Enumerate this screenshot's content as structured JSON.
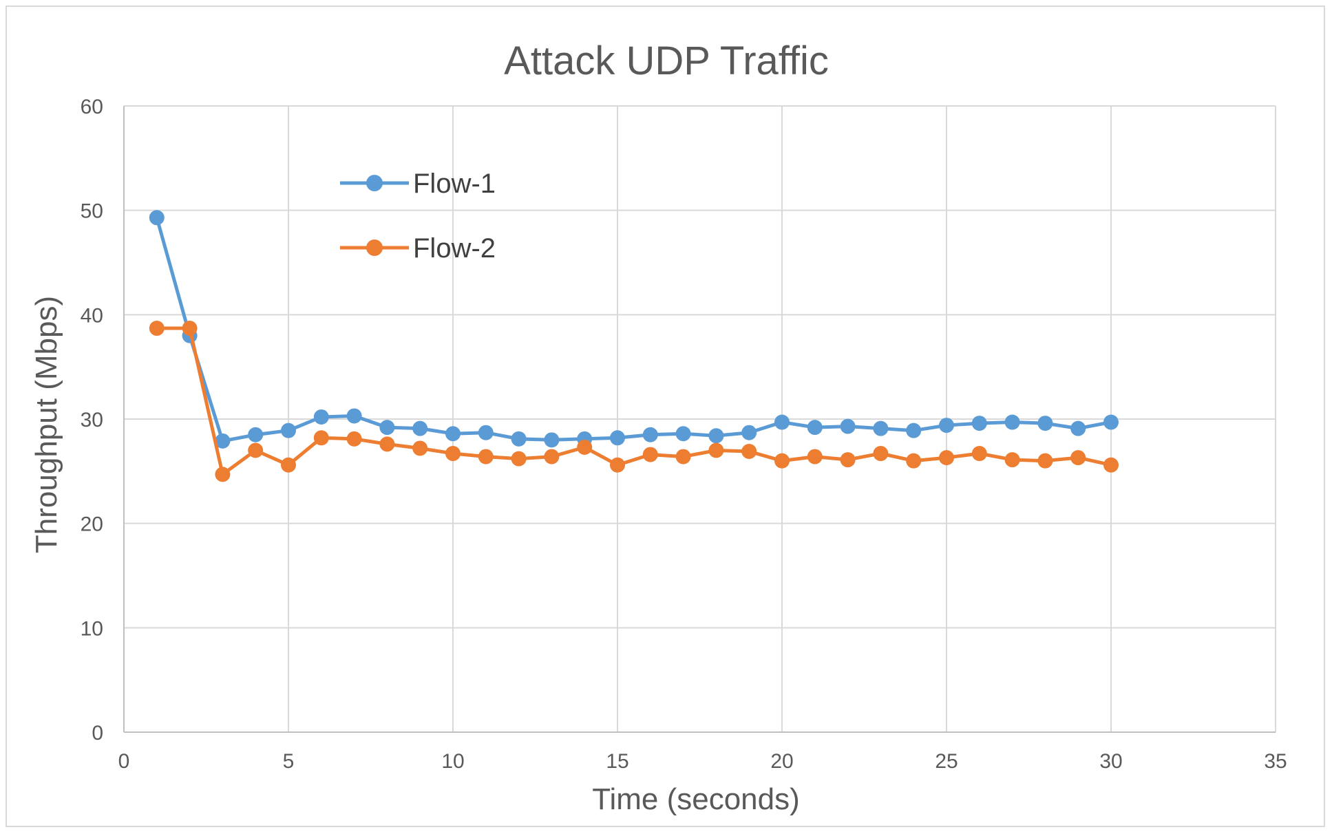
{
  "chart_data": {
    "type": "line",
    "title": "Attack UDP Traffic",
    "xlabel": "Time (seconds)",
    "ylabel": "Throughput (Mbps)",
    "xlim": [
      0,
      35
    ],
    "ylim": [
      0,
      60
    ],
    "x_ticks": [
      0,
      5,
      10,
      15,
      20,
      25,
      30,
      35
    ],
    "y_ticks": [
      0,
      10,
      20,
      30,
      40,
      50,
      60
    ],
    "grid": true,
    "legend_position": "upper-left-inside",
    "x": [
      1,
      2,
      3,
      4,
      5,
      6,
      7,
      8,
      9,
      10,
      11,
      12,
      13,
      14,
      15,
      16,
      17,
      18,
      19,
      20,
      21,
      22,
      23,
      24,
      25,
      26,
      27,
      28,
      29,
      30
    ],
    "series": [
      {
        "name": "Flow-1",
        "color": "#5b9bd5",
        "values": [
          49.3,
          38.0,
          27.9,
          28.5,
          28.9,
          30.2,
          30.3,
          29.2,
          29.1,
          28.6,
          28.7,
          28.1,
          28.0,
          28.1,
          28.2,
          28.5,
          28.6,
          28.4,
          28.7,
          29.7,
          29.2,
          29.3,
          29.1,
          28.9,
          29.4,
          29.6,
          29.7,
          29.6,
          29.1,
          29.7
        ]
      },
      {
        "name": "Flow-2",
        "color": "#ed7d31",
        "values": [
          38.7,
          38.7,
          24.7,
          27.0,
          25.6,
          28.2,
          28.1,
          27.6,
          27.2,
          26.7,
          26.4,
          26.2,
          26.4,
          27.3,
          25.6,
          26.6,
          26.4,
          27.0,
          26.9,
          26.0,
          26.4,
          26.1,
          26.7,
          26.0,
          26.3,
          26.7,
          26.1,
          26.0,
          26.3,
          25.6
        ]
      }
    ]
  }
}
